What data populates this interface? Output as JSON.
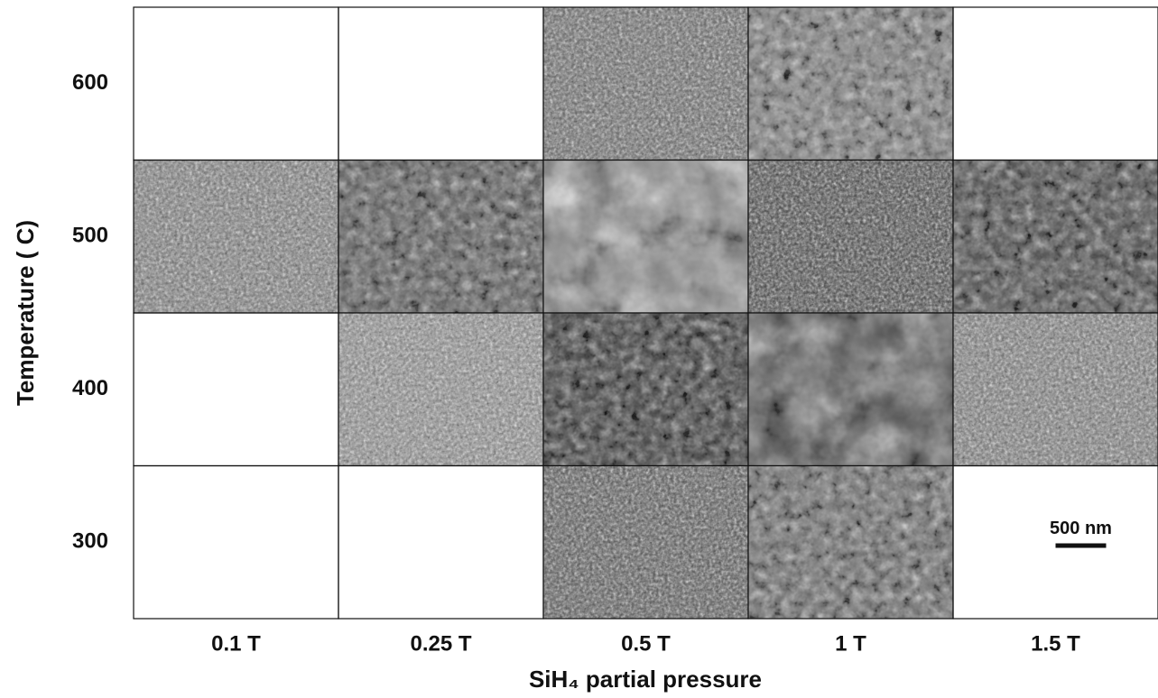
{
  "figure": {
    "y_label": "Temperature ( C)",
    "x_label": "SiH₄ partial pressure",
    "rows": [
      "600",
      "500",
      "400",
      "300"
    ],
    "columns": [
      "0.1 T",
      "0.25 T",
      "0.5 T",
      "1 T",
      "1.5 T"
    ],
    "has_image": [
      [
        false,
        false,
        true,
        true,
        false
      ],
      [
        true,
        true,
        true,
        true,
        true
      ],
      [
        false,
        true,
        true,
        true,
        true
      ],
      [
        false,
        false,
        true,
        true,
        false
      ]
    ],
    "scale_bar": {
      "label": "500 nm",
      "row": 3,
      "column": 4
    }
  }
}
